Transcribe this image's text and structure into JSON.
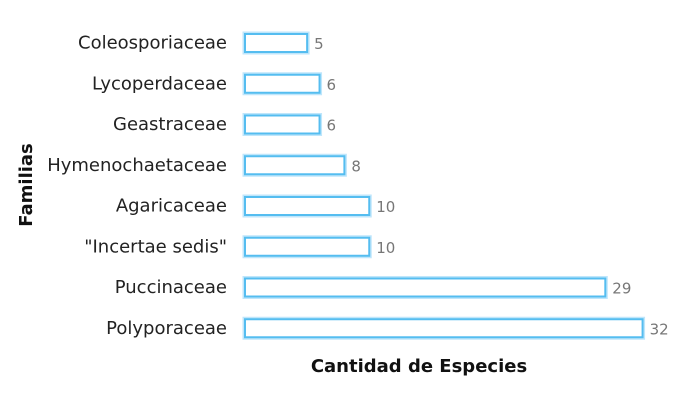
{
  "chart_data": {
    "type": "bar",
    "orientation": "horizontal",
    "title": "",
    "xlabel": "Cantidad de Especies",
    "ylabel": "Familias",
    "categories": [
      "Coleosporiaceae",
      "Lycoperdaceae",
      "Geastraceae",
      "Hymenochaetaceae",
      "Agaricaceae",
      "\"Incertae sedis\"",
      "Puccinaceae",
      "Polyporaceae"
    ],
    "values": [
      5,
      6,
      6,
      8,
      10,
      10,
      29,
      32
    ],
    "data_labels": [
      "5",
      "6",
      "6",
      "8",
      "10",
      "10",
      "29",
      "32"
    ],
    "xlim": [
      0,
      33
    ],
    "grid": false,
    "legend": false,
    "colors": {
      "bar_fill": "#ffffff",
      "bar_stroke": "#55bdf0",
      "bar_glow": "#bfe6fb",
      "category_text": "#222222",
      "value_text": "#777777",
      "axis_title_text": "#111111"
    }
  }
}
